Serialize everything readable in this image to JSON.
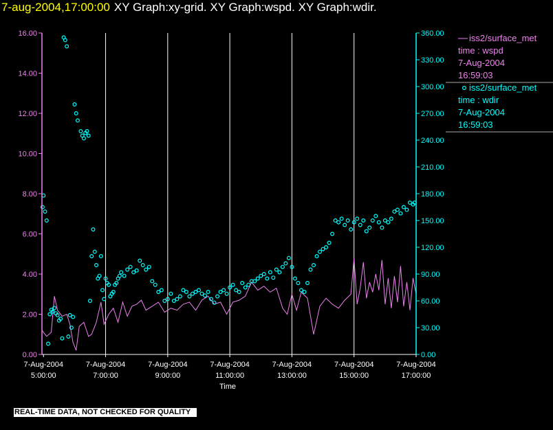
{
  "title": {
    "timestamp": "7-aug-2004,17:00:00",
    "text": "XY Graph:xy-grid.  XY Graph:wspd.  XY Graph:wdir."
  },
  "legend": [
    {
      "marker": "line",
      "name": "iss2/surface_met",
      "var": "time : wspd",
      "date": "7-Aug-2004",
      "time": "16:59:03",
      "color": "#ee82ee"
    },
    {
      "marker": "circle",
      "name": "iss2/surface_met",
      "var": "time : wdir",
      "date": "7-Aug-2004",
      "time": "16:59:03",
      "color": "#00ffff"
    }
  ],
  "disclaimer": "REAL-TIME DATA, NOT CHECKED FOR QUALITY",
  "chart_data": {
    "type": "line",
    "xlabel": "Time",
    "x_ticks": [
      {
        "date": "7-Aug-2004",
        "time": "5:00:00"
      },
      {
        "date": "7-Aug-2004",
        "time": "7:00:00"
      },
      {
        "date": "7-Aug-2004",
        "time": "9:00:00"
      },
      {
        "date": "7-Aug-2004",
        "time": "11:00:00"
      },
      {
        "date": "7-Aug-2004",
        "time": "13:00:00"
      },
      {
        "date": "7-Aug-2004",
        "time": "15:00:00"
      },
      {
        "date": "7-Aug-2004",
        "time": "17:00:00"
      }
    ],
    "xlim_hours": [
      4.95,
      17.0
    ],
    "x_grid_hours": [
      7,
      9,
      11,
      13,
      15
    ],
    "y_left": {
      "lim": [
        0,
        16
      ],
      "ticks": [
        "0.00",
        "2.00",
        "4.00",
        "6.00",
        "8.00",
        "10.00",
        "12.00",
        "14.00",
        "16.00"
      ],
      "color": "#ee82ee"
    },
    "y_right": {
      "lim": [
        0,
        360
      ],
      "ticks": [
        "0.00",
        "30.00",
        "60.00",
        "90.00",
        "120.00",
        "150.00",
        "180.00",
        "210.00",
        "240.00",
        "270.00",
        "300.00",
        "330.00",
        "360.00"
      ],
      "color": "#00ffff"
    },
    "series": [
      {
        "name": "iss2/surface_met time : wspd",
        "axis": "left",
        "style": "line",
        "color": "#ee82ee",
        "x_hours": [
          4.95,
          5.1,
          5.25,
          5.35,
          5.45,
          5.6,
          5.75,
          5.85,
          5.95,
          6.05,
          6.15,
          6.3,
          6.45,
          6.55,
          6.7,
          6.85,
          6.95,
          7.1,
          7.25,
          7.4,
          7.55,
          7.7,
          7.85,
          8.0,
          8.15,
          8.3,
          8.5,
          8.7,
          8.9,
          9.1,
          9.3,
          9.5,
          9.7,
          9.9,
          10.1,
          10.3,
          10.5,
          10.7,
          10.9,
          11.1,
          11.3,
          11.5,
          11.7,
          11.9,
          12.1,
          12.3,
          12.5,
          12.7,
          12.85,
          13.0,
          13.15,
          13.3,
          13.5,
          13.7,
          13.9,
          14.1,
          14.3,
          14.5,
          14.7,
          14.9,
          15.0,
          15.1,
          15.2,
          15.3,
          15.4,
          15.5,
          15.6,
          15.7,
          15.8,
          15.9,
          16.0,
          16.1,
          16.2,
          16.3,
          16.4,
          16.5,
          16.6,
          16.7,
          16.8,
          16.9,
          17.0
        ],
        "values": [
          1.2,
          0.9,
          1.1,
          2.9,
          2.2,
          1.9,
          2.0,
          1.5,
          0.6,
          0.2,
          1.4,
          1.6,
          0.9,
          1.0,
          1.6,
          2.6,
          1.5,
          2.0,
          2.3,
          1.6,
          2.6,
          1.9,
          2.4,
          2.5,
          2.7,
          2.2,
          2.4,
          2.6,
          2.1,
          2.3,
          2.2,
          2.5,
          2.6,
          2.2,
          2.7,
          2.9,
          2.5,
          2.6,
          2.0,
          2.6,
          2.7,
          2.9,
          3.6,
          3.2,
          3.4,
          3.1,
          3.3,
          2.3,
          2.0,
          3.0,
          2.2,
          3.1,
          2.8,
          1.0,
          2.4,
          2.8,
          2.5,
          2.3,
          2.7,
          3.0,
          4.8,
          2.5,
          3.3,
          4.6,
          2.8,
          3.6,
          3.1,
          4.0,
          3.2,
          4.7,
          2.5,
          3.8,
          2.3,
          3.9,
          2.6,
          4.4,
          2.4,
          3.6,
          2.2,
          3.8,
          3.0
        ]
      },
      {
        "name": "iss2/surface_met time : wdir",
        "axis": "right",
        "style": "circle",
        "color": "#00ffff",
        "x_hours": [
          4.97,
          5.0,
          5.05,
          5.1,
          5.15,
          5.2,
          5.25,
          5.3,
          5.35,
          5.4,
          5.45,
          5.5,
          5.55,
          5.6,
          5.65,
          5.7,
          5.75,
          5.8,
          5.85,
          5.9,
          5.95,
          6.0,
          6.05,
          6.1,
          6.2,
          6.25,
          6.3,
          6.35,
          6.4,
          6.45,
          6.5,
          6.55,
          6.6,
          6.65,
          6.7,
          6.75,
          6.8,
          6.85,
          6.9,
          6.95,
          7.0,
          7.05,
          7.1,
          7.15,
          7.2,
          7.25,
          7.3,
          7.35,
          7.4,
          7.45,
          7.5,
          7.6,
          7.7,
          7.8,
          7.9,
          8.0,
          8.1,
          8.2,
          8.3,
          8.4,
          8.5,
          8.6,
          8.7,
          8.8,
          8.9,
          9.0,
          9.1,
          9.2,
          9.3,
          9.4,
          9.5,
          9.6,
          9.7,
          9.8,
          9.9,
          10.0,
          10.1,
          10.2,
          10.3,
          10.4,
          10.5,
          10.6,
          10.7,
          10.8,
          10.9,
          11.0,
          11.1,
          11.2,
          11.3,
          11.4,
          11.5,
          11.6,
          11.7,
          11.8,
          11.9,
          12.0,
          12.1,
          12.2,
          12.3,
          12.4,
          12.5,
          12.6,
          12.7,
          12.8,
          12.9,
          13.0,
          13.1,
          13.2,
          13.3,
          13.4,
          13.5,
          13.6,
          13.7,
          13.8,
          13.9,
          14.0,
          14.1,
          14.2,
          14.3,
          14.4,
          14.5,
          14.6,
          14.7,
          14.8,
          14.9,
          15.0,
          15.1,
          15.2,
          15.3,
          15.4,
          15.5,
          15.6,
          15.7,
          15.8,
          15.9,
          16.0,
          16.1,
          16.2,
          16.3,
          16.4,
          16.5,
          16.6,
          16.7,
          16.8,
          16.9,
          16.95
        ],
        "values": [
          165,
          178,
          160,
          150,
          12,
          45,
          50,
          48,
          52,
          46,
          44,
          38,
          40,
          18,
          355,
          352,
          345,
          20,
          44,
          30,
          42,
          280,
          270,
          262,
          250,
          245,
          242,
          248,
          250,
          245,
          60,
          110,
          140,
          115,
          100,
          85,
          88,
          110,
          72,
          62,
          85,
          80,
          78,
          65,
          68,
          70,
          78,
          80,
          85,
          88,
          92,
          88,
          95,
          98,
          92,
          94,
          105,
          100,
          95,
          98,
          82,
          78,
          70,
          72,
          60,
          62,
          68,
          60,
          62,
          65,
          72,
          70,
          65,
          68,
          70,
          72,
          68,
          66,
          70,
          62,
          58,
          65,
          70,
          72,
          68,
          75,
          78,
          72,
          70,
          80,
          75,
          78,
          82,
          82,
          85,
          88,
          90,
          85,
          92,
          86,
          95,
          92,
          98,
          102,
          108,
          98,
          85,
          80,
          72,
          70,
          80,
          95,
          100,
          110,
          115,
          118,
          120,
          125,
          135,
          150,
          148,
          152,
          145,
          150,
          140,
          148,
          152,
          145,
          150,
          138,
          142,
          150,
          155,
          148,
          142,
          150,
          148,
          152,
          160,
          162,
          158,
          165,
          162,
          170,
          168,
          170
        ]
      }
    ]
  }
}
